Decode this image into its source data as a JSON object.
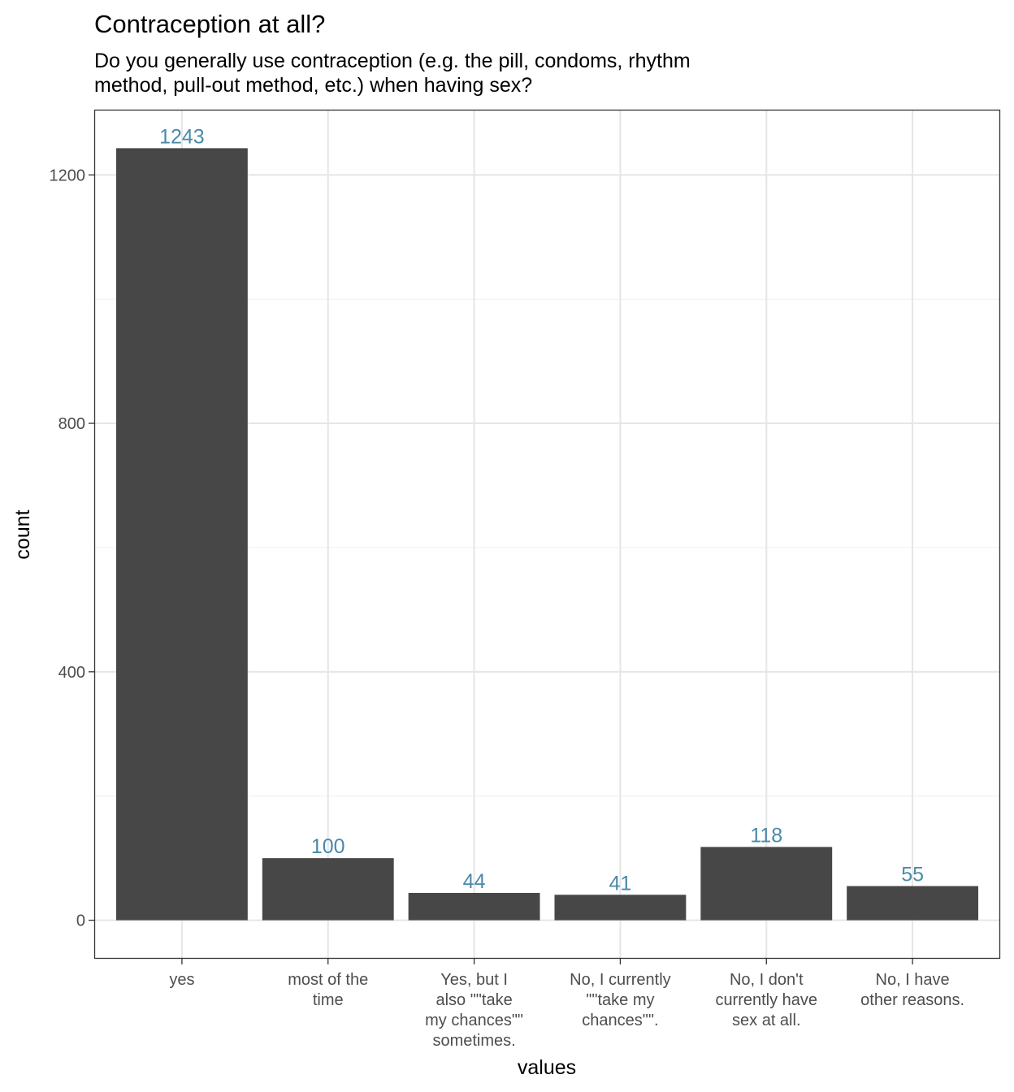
{
  "chart_data": {
    "type": "bar",
    "title": "Contraception at all?",
    "subtitle": [
      "Do you generally use contraception (e.g. the pill, condoms, rhythm",
      "method, pull-out method, etc.) when having sex?"
    ],
    "xlabel": "values",
    "ylabel": "count",
    "categories": [
      [
        "yes"
      ],
      [
        "most of the",
        "time"
      ],
      [
        "Yes, but I",
        "also \"\"take",
        "my chances\"\"",
        "sometimes."
      ],
      [
        "No, I currently",
        "\"\"take my",
        "chances\"\"."
      ],
      [
        "No, I don't",
        "currently have",
        "sex at all."
      ],
      [
        "No, I have",
        "other reasons."
      ]
    ],
    "values": [
      1243,
      100,
      44,
      41,
      118,
      55
    ],
    "data_labels": [
      "1243",
      "100",
      "44",
      "41",
      "118",
      "55"
    ],
    "ylim": [
      -62,
      1305
    ],
    "y_ticks": [
      0,
      400,
      800,
      1200
    ],
    "y_tick_labels": [
      "0",
      "400",
      "800",
      "1200"
    ],
    "y_minor_ticks": [
      200,
      600,
      1000
    ],
    "grid": true,
    "colors": {
      "bar": "#474747",
      "data_label": "#4a8aa8",
      "grid_major": "#e6e6e6",
      "grid_minor": "#f0f0f0",
      "panel_border": "#333333",
      "tick_text": "#4d4d4d"
    }
  }
}
